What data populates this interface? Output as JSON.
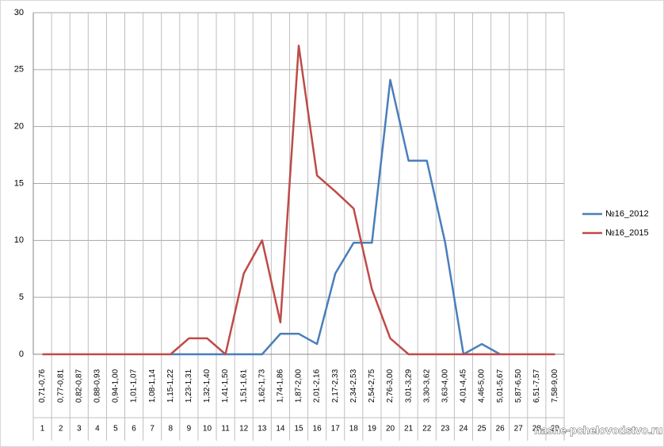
{
  "chart_data": {
    "type": "line",
    "categories": [
      "0,71-0,76",
      "0,77-0,81",
      "0,82-0,87",
      "0,88-0,93",
      "0,94-1,00",
      "1,01-1,07",
      "1,08-1,14",
      "1,15-1,22",
      "1,23-1,31",
      "1,32-1,40",
      "1,41-1,50",
      "1,51-1,61",
      "1,62-1,73",
      "1,74-1,86",
      "1,87-2,00",
      "2,01-2,16",
      "2,17-2,33",
      "2,34-2,53",
      "2,54-2,75",
      "2,76-3,00",
      "3,01-3,29",
      "3,30-3,62",
      "3,63-4,00",
      "4,01-4,45",
      "4,46-5,00",
      "5,01-5,67",
      "5,87-6,50",
      "6,51-7,57",
      "7,58-9,00"
    ],
    "category_numbers": [
      1,
      2,
      3,
      4,
      5,
      6,
      7,
      8,
      9,
      10,
      11,
      12,
      13,
      14,
      15,
      16,
      17,
      18,
      19,
      20,
      21,
      22,
      23,
      24,
      25,
      26,
      27,
      28,
      29
    ],
    "series": [
      {
        "name": "№16_2012",
        "color": "#4a7ebb",
        "values": [
          null,
          null,
          null,
          null,
          null,
          null,
          null,
          0,
          0,
          0,
          0,
          0,
          0,
          1.8,
          1.8,
          0.9,
          7.1,
          9.8,
          9.8,
          24.1,
          17,
          17,
          9.8,
          0,
          0.9,
          0,
          null,
          null,
          null
        ]
      },
      {
        "name": "№16_2015",
        "color": "#be4b48",
        "values": [
          0,
          0,
          0,
          0,
          0,
          0,
          0,
          0,
          1.4,
          1.4,
          0,
          7.1,
          10,
          2.8,
          27.1,
          15.7,
          14.3,
          12.8,
          5.7,
          1.4,
          0,
          0,
          0,
          0,
          0,
          0,
          0,
          0,
          0
        ]
      }
    ],
    "ylim": [
      0,
      30
    ],
    "yticks": [
      0,
      5,
      10,
      15,
      20,
      25,
      30
    ],
    "grid": true,
    "legend": "right",
    "watermark": "nashe-pchelovodstvo.ru"
  }
}
